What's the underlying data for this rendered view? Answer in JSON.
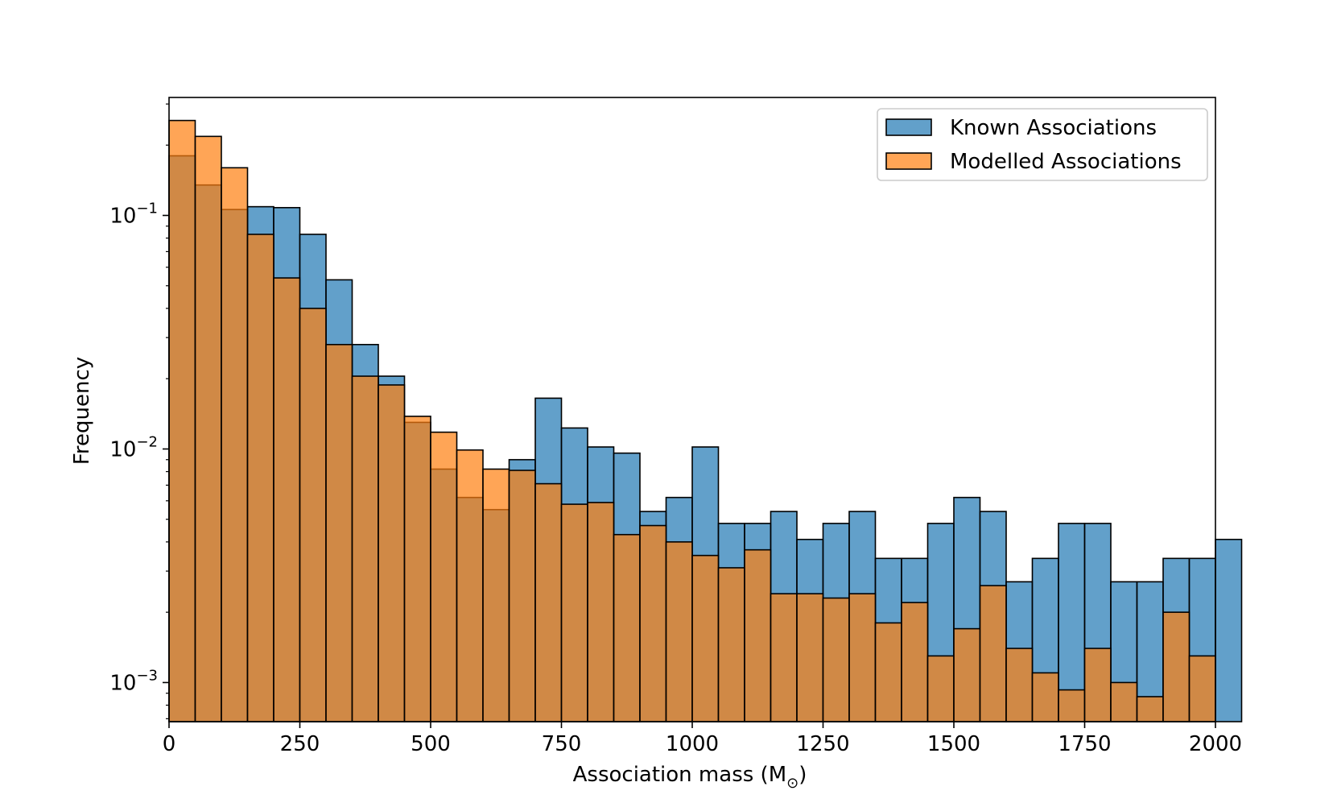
{
  "chart_data": {
    "type": "bar",
    "subtype": "overlaid-histogram",
    "xlabel": "Association mass (M",
    "xlabel_sub": "⊙",
    "xlabel_close": ")",
    "ylabel": "Frequency",
    "yscale": "log",
    "xlim": [
      0,
      2000
    ],
    "ylim": [
      0.00068,
      0.32
    ],
    "bin_width": 50,
    "x_ticks": [
      {
        "value": 0,
        "label": "0"
      },
      {
        "value": 250,
        "label": "250"
      },
      {
        "value": 500,
        "label": "500"
      },
      {
        "value": 750,
        "label": "750"
      },
      {
        "value": 1000,
        "label": "1000"
      },
      {
        "value": 1250,
        "label": "1250"
      },
      {
        "value": 1500,
        "label": "1500"
      },
      {
        "value": 1750,
        "label": "1750"
      },
      {
        "value": 2000,
        "label": "2000"
      }
    ],
    "y_ticks": [
      {
        "value": 0.1,
        "base": "10",
        "exp": "−1"
      },
      {
        "value": 0.01,
        "base": "10",
        "exp": "−2"
      },
      {
        "value": 0.001,
        "base": "10",
        "exp": "−3"
      }
    ],
    "legend_position": "top-right",
    "grid": false,
    "series": [
      {
        "name": "Known Associations",
        "color": "#1f77b4",
        "values": [
          0.18,
          0.135,
          0.106,
          0.109,
          0.108,
          0.083,
          0.053,
          0.028,
          0.0205,
          0.013,
          0.0082,
          0.0062,
          0.0055,
          0.009,
          0.0165,
          0.0123,
          0.0102,
          0.0096,
          0.0054,
          0.0062,
          0.0102,
          0.0048,
          0.0048,
          0.0054,
          0.0041,
          0.0048,
          0.0054,
          0.0034,
          0.0034,
          0.0048,
          0.0062,
          0.0054,
          0.0027,
          0.0034,
          0.0048,
          0.0048,
          0.0027,
          0.0027,
          0.0034,
          0.0034,
          0.0041
        ]
      },
      {
        "name": "Modelled Associations",
        "color": "#ff7f0e",
        "values": [
          0.255,
          0.218,
          0.16,
          0.083,
          0.054,
          0.04,
          0.028,
          0.0205,
          0.0188,
          0.0138,
          0.0118,
          0.0099,
          0.0082,
          0.0081,
          0.0071,
          0.0058,
          0.0059,
          0.0043,
          0.0047,
          0.004,
          0.0035,
          0.0031,
          0.0037,
          0.0024,
          0.0024,
          0.0023,
          0.0024,
          0.0018,
          0.0022,
          0.0013,
          0.0017,
          0.0026,
          0.0014,
          0.0011,
          0.00093,
          0.0014,
          0.001,
          0.00087,
          0.002,
          0.0013
        ]
      }
    ]
  }
}
